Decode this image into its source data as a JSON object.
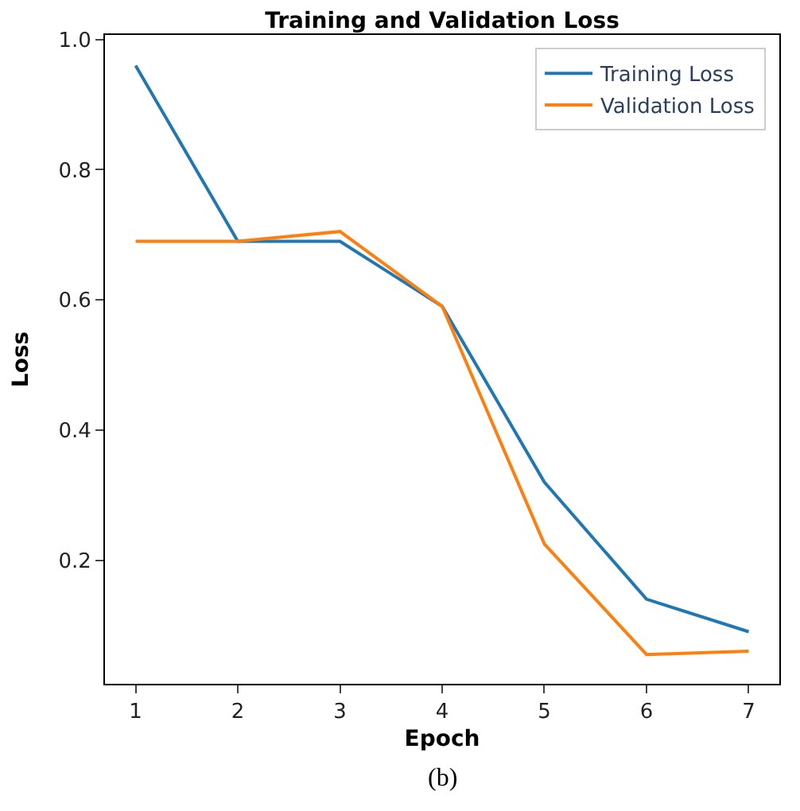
{
  "chart_data": {
    "type": "line",
    "title": "Training and Validation Loss",
    "xlabel": "Epoch",
    "ylabel": "Loss",
    "x": [
      1,
      2,
      3,
      4,
      5,
      6,
      7
    ],
    "series": [
      {
        "name": "Training Loss",
        "color": "#1f77b4",
        "values": [
          0.96,
          0.69,
          0.69,
          0.59,
          0.32,
          0.14,
          0.09
        ]
      },
      {
        "name": "Validation Loss",
        "color": "#ff7f0e",
        "values": [
          0.69,
          0.69,
          0.705,
          0.59,
          0.225,
          0.055,
          0.06
        ]
      }
    ],
    "xlim": [
      0.7,
      7.3
    ],
    "xticks": [
      1,
      2,
      3,
      4,
      5,
      6,
      7
    ],
    "ylim": [
      0.01,
      1.007
    ],
    "yticks": [
      0.2,
      0.4,
      0.6,
      0.8,
      {
        "value": 1,
        "label": "1.0"
      }
    ],
    "legend": "top right",
    "annotations": [
      "(b)"
    ]
  }
}
